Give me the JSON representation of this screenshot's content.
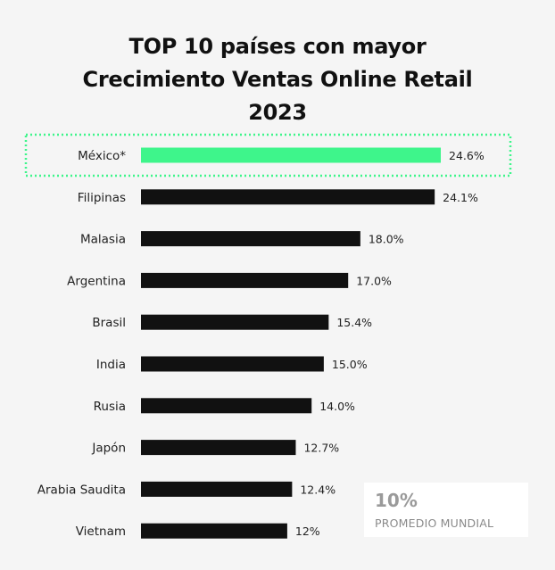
{
  "chart_data": {
    "type": "bar",
    "orientation": "horizontal",
    "title": "TOP 10 países con mayor Crecimiento Ventas Online Retail 2023",
    "title_lines": [
      "TOP 10 países con mayor",
      "Crecimiento Ventas Online Retail",
      "2023"
    ],
    "categories": [
      "México*",
      "Filipinas",
      "Malasia",
      "Argentina",
      "Brasil",
      "India",
      "Rusia",
      "Japón",
      "Arabia Saudita",
      "Vietnam"
    ],
    "values": [
      24.6,
      24.1,
      18.0,
      17.0,
      15.4,
      15.0,
      14.0,
      12.7,
      12.4,
      12
    ],
    "value_labels": [
      "24.6%",
      "24.1%",
      "18.0%",
      "17.0%",
      "15.4%",
      "15.0%",
      "14.0%",
      "12.7%",
      "12.4%",
      "12%"
    ],
    "highlight": "México*",
    "xlabel": "",
    "ylabel": "",
    "xlim": [
      0,
      24.6
    ],
    "grid": false,
    "colors": {
      "bar": "#111111",
      "highlight_bar": "#3ef58b",
      "highlight_box": "#3ef58b",
      "text": "#222222",
      "background": "#f5f5f5"
    }
  },
  "badge": {
    "value": "10%",
    "label": "PROMEDIO MUNDIAL"
  }
}
